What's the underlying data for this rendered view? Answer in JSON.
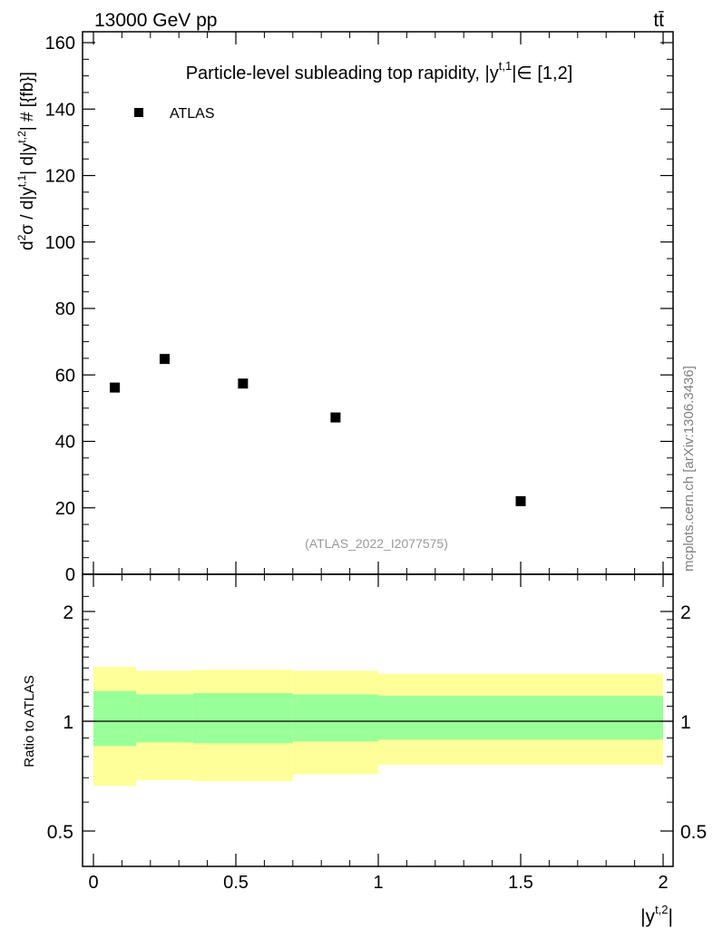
{
  "header": {
    "energy_label": "13000 GeV pp",
    "process_label": "tt̄"
  },
  "side_label": "mcplots.cern.ch [arXiv:1306.3436]",
  "chart_data": [
    {
      "type": "scatter",
      "panel": "main",
      "title": "Particle-level subleading top rapidity, |y",
      "title_sup": "t,1",
      "title_suffix": "|∈ [1,2]",
      "ylabel": "d²σ / d|y^{t,1}| d|y^{t,2}| # [{fb}]",
      "ylim": [
        0,
        165
      ],
      "yticks": [
        0,
        20,
        40,
        60,
        80,
        100,
        120,
        140,
        160
      ],
      "xlim": [
        -0.05,
        2.05
      ],
      "legend": {
        "entries": [
          "ATLAS"
        ],
        "placement": "top-left"
      },
      "annotation": "(ATLAS_2022_I2077575)",
      "series": [
        {
          "name": "ATLAS",
          "x": [
            0.075,
            0.25,
            0.525,
            0.85,
            1.5
          ],
          "y": [
            56.2,
            64.8,
            57.4,
            47.2,
            22.0
          ],
          "color": "#000000"
        }
      ]
    },
    {
      "type": "area",
      "panel": "ratio",
      "ylabel": "Ratio to ATLAS",
      "xlabel": "|y^{t,2}|",
      "ylim": [
        0.4,
        2.4
      ],
      "yticks": [
        0.5,
        1,
        2
      ],
      "ytick_labels": [
        "0.5",
        "1",
        "2"
      ],
      "xlim": [
        -0.05,
        2.05
      ],
      "xticks": [
        0,
        0.5,
        1,
        1.5,
        2
      ],
      "xtick_labels": [
        "0",
        "0.5",
        "1",
        "1.5",
        "2"
      ],
      "reference_line": 1,
      "bins": [
        {
          "x0": 0.0,
          "x1": 0.15,
          "stat_lo": 0.855,
          "stat_hi": 1.21,
          "tot_lo": 0.665,
          "tot_hi": 1.41
        },
        {
          "x0": 0.15,
          "x1": 0.35,
          "stat_lo": 0.875,
          "stat_hi": 1.185,
          "tot_lo": 0.69,
          "tot_hi": 1.375
        },
        {
          "x0": 0.35,
          "x1": 0.7,
          "stat_lo": 0.87,
          "stat_hi": 1.195,
          "tot_lo": 0.685,
          "tot_hi": 1.385
        },
        {
          "x0": 0.7,
          "x1": 1.0,
          "stat_lo": 0.88,
          "stat_hi": 1.185,
          "tot_lo": 0.715,
          "tot_hi": 1.375
        },
        {
          "x0": 1.0,
          "x1": 2.0,
          "stat_lo": 0.89,
          "stat_hi": 1.175,
          "tot_lo": 0.76,
          "tot_hi": 1.35
        }
      ],
      "colors": {
        "stat": "#99ff99",
        "total": "#ffff99"
      }
    }
  ]
}
